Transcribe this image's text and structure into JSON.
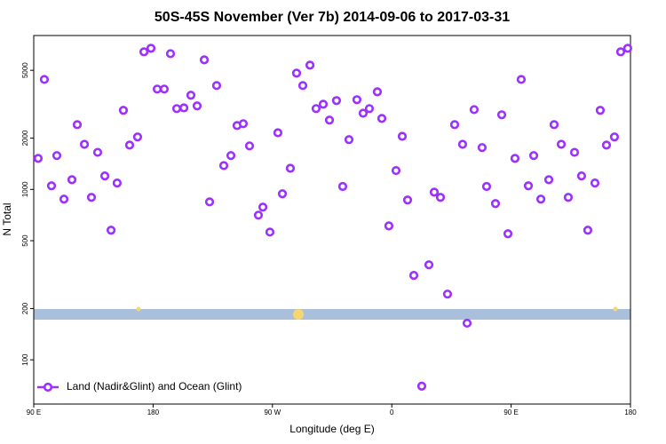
{
  "chart_data": {
    "type": "scatter",
    "title": "50S-45S November (Ver 7b)   2014-09-06 to 2017-03-31",
    "xlabel": "Longitude (deg E)",
    "ylabel": "N Total",
    "log_y": true,
    "legend": "lower left",
    "xlim": [
      90,
      540
    ],
    "xticks": [
      {
        "value": 90,
        "label": "90 E"
      },
      180,
      {
        "value": 270,
        "label": "90 W"
      },
      {
        "value": 360,
        "label": "0"
      },
      {
        "value": 450,
        "label": "90 E"
      },
      {
        "value": 540,
        "label": "180"
      }
    ],
    "ylim": [
      55,
      8000
    ],
    "yticks": [
      100,
      200,
      500,
      1000,
      2000,
      5000
    ],
    "x": [
      93.3,
      98.0,
      103.4,
      107.4,
      112.8,
      118.8,
      122.8,
      128.2,
      133.5,
      138.2,
      143.6,
      148.3,
      152.9,
      157.6,
      162.3,
      168.3,
      173.1,
      178.4,
      183.1,
      188.4,
      193.1,
      197.8,
      203.2,
      208.5,
      213.2,
      218.6,
      222.6,
      227.9,
      233.3,
      238.7,
      243.3,
      248.0,
      252.7,
      259.4,
      262.8,
      268.1,
      274.1,
      277.5,
      283.5,
      288.2,
      292.9,
      298.3,
      302.9,
      308.3,
      313.0,
      318.3,
      323.0,
      327.7,
      333.7,
      338.4,
      343.1,
      349.1,
      352.5,
      357.8,
      363.2,
      367.9,
      371.9,
      376.6,
      382.6,
      388.0,
      392.0,
      396.7,
      402.0,
      407.4,
      413.4,
      416.8,
      422.1,
      428.1,
      431.5,
      438.2,
      442.9,
      447.6,
      452.9,
      457.6,
      463.0,
      467.0,
      472.4,
      478.4,
      482.4,
      487.8,
      493.1,
      497.8,
      503.1,
      507.8,
      513.2,
      517.2,
      521.9,
      527.9,
      532.6,
      537.9
    ],
    "series": [
      {
        "name": "Land (Nadir&Glint) and Ocean (Glint)",
        "color": "#9b30ff",
        "values": [
          1520,
          4420,
          1050,
          1580,
          877,
          1140,
          2400,
          1840,
          898,
          1650,
          1200,
          576,
          1090,
          2910,
          1820,
          2030,
          6420,
          6730,
          3880,
          3880,
          6260,
          2980,
          3010,
          3570,
          3090,
          5760,
          845,
          4070,
          1380,
          1580,
          2370,
          2430,
          1800,
          706,
          787,
          562,
          2150,
          942,
          1330,
          4810,
          4070,
          5360,
          2980,
          3160,
          2550,
          3320,
          1040,
          1960,
          3360,
          2800,
          2980,
          3740,
          2610,
          611,
          1290,
          2050,
          866,
          313,
          70,
          361,
          964,
          898,
          243,
          2400,
          1840,
          164,
          2940,
          1760,
          1040,
          826,
          2740,
          549,
          1520,
          4420,
          1050,
          1580,
          877,
          1140,
          2400,
          1840,
          898,
          1650,
          1200,
          576,
          1090,
          2910,
          1820,
          2030,
          6420,
          6730
        ]
      }
    ]
  }
}
